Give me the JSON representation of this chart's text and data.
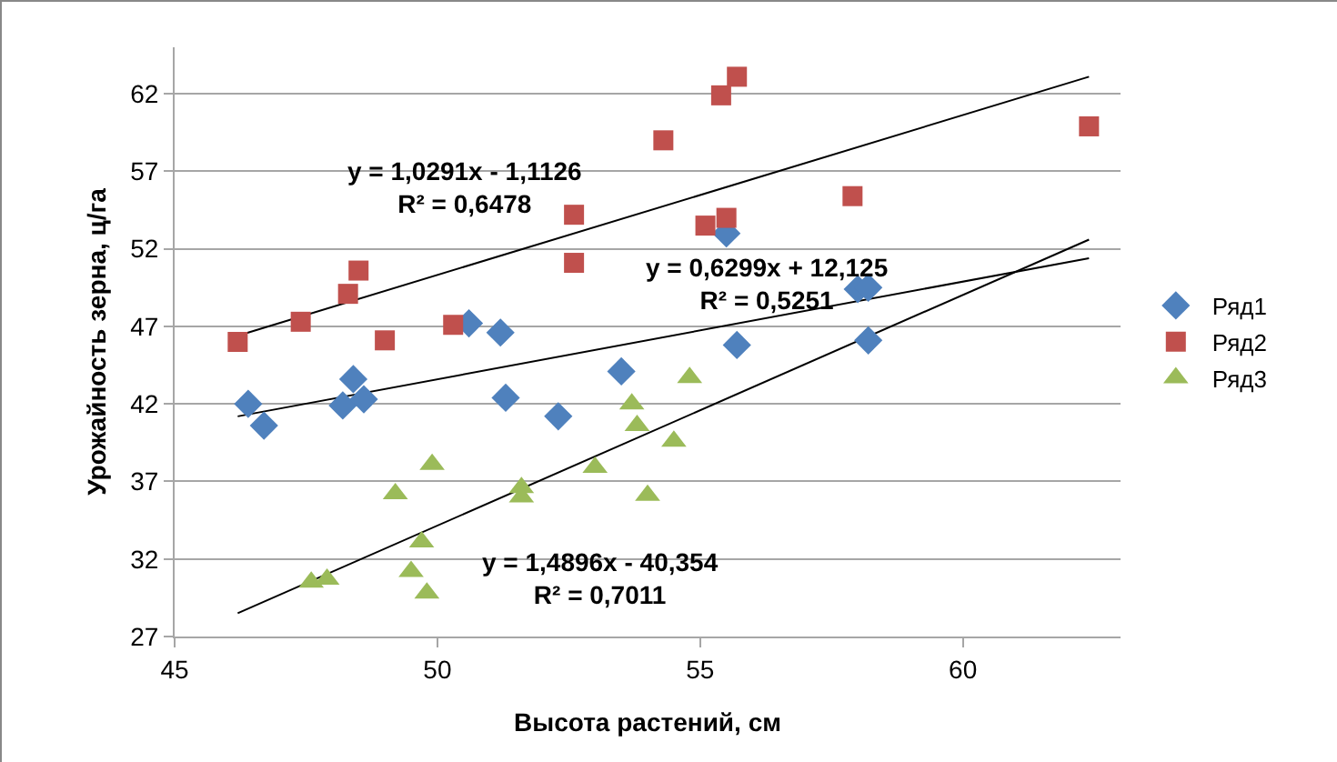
{
  "chart_data": {
    "type": "scatter",
    "xlabel": "Высота растений, см",
    "ylabel": "Урожайность зерна, ц/га",
    "xlim": [
      45,
      63
    ],
    "xticks": [
      45,
      50,
      55,
      60
    ],
    "ylim": [
      27,
      65
    ],
    "yticks": [
      27,
      32,
      37,
      42,
      47,
      52,
      57,
      62
    ],
    "grid": "y",
    "legend": "right",
    "series": [
      {
        "name": "Ряд1",
        "color": "#4f81bd",
        "marker": "diamond",
        "x": [
          46.4,
          46.7,
          48.2,
          48.4,
          48.6,
          50.6,
          51.2,
          51.3,
          52.3,
          53.5,
          55.5,
          55.7,
          58.0,
          58.2,
          58.2
        ],
        "values": [
          42.0,
          40.6,
          41.9,
          43.6,
          42.3,
          47.2,
          46.6,
          42.4,
          41.2,
          44.1,
          53.0,
          45.8,
          49.4,
          49.5,
          46.1
        ]
      },
      {
        "name": "Ряд2",
        "color": "#c0504d",
        "marker": "square",
        "x": [
          46.2,
          47.4,
          48.3,
          48.5,
          49.0,
          50.3,
          52.6,
          52.6,
          54.3,
          55.4,
          55.7,
          55.1,
          55.5,
          57.9,
          62.4
        ],
        "values": [
          46.0,
          47.3,
          49.1,
          50.6,
          46.1,
          47.1,
          54.2,
          51.1,
          59.0,
          61.9,
          63.1,
          53.5,
          54.0,
          55.4,
          59.9
        ]
      },
      {
        "name": "Ряд3",
        "color": "#9bbb59",
        "marker": "triangle",
        "x": [
          47.6,
          47.9,
          49.2,
          49.5,
          49.7,
          49.8,
          49.9,
          51.6,
          51.6,
          53.0,
          53.7,
          53.8,
          54.0,
          54.5,
          54.8
        ],
        "values": [
          30.5,
          30.7,
          36.2,
          31.2,
          33.1,
          29.8,
          38.1,
          36.6,
          36.0,
          37.9,
          42.0,
          40.6,
          36.1,
          39.6,
          43.7
        ]
      },
      {
        "type": "line",
        "color": "#000000",
        "x": [
          46.2,
          62.4
        ],
        "values": [
          41.2,
          51.4
        ]
      },
      {
        "type": "line",
        "color": "#000000",
        "x": [
          46.2,
          62.4
        ],
        "values": [
          46.4,
          63.1
        ]
      },
      {
        "type": "line",
        "color": "#000000",
        "x": [
          46.2,
          62.4
        ],
        "values": [
          28.5,
          52.6
        ]
      }
    ],
    "annotations": [
      "y = 1,0291x - 1,1126\nR² = 0,6478",
      "y = 0,6299x + 12,125\nR² = 0,5251",
      "y = 1,4896x - 40,354\nR² = 0,7011"
    ]
  }
}
